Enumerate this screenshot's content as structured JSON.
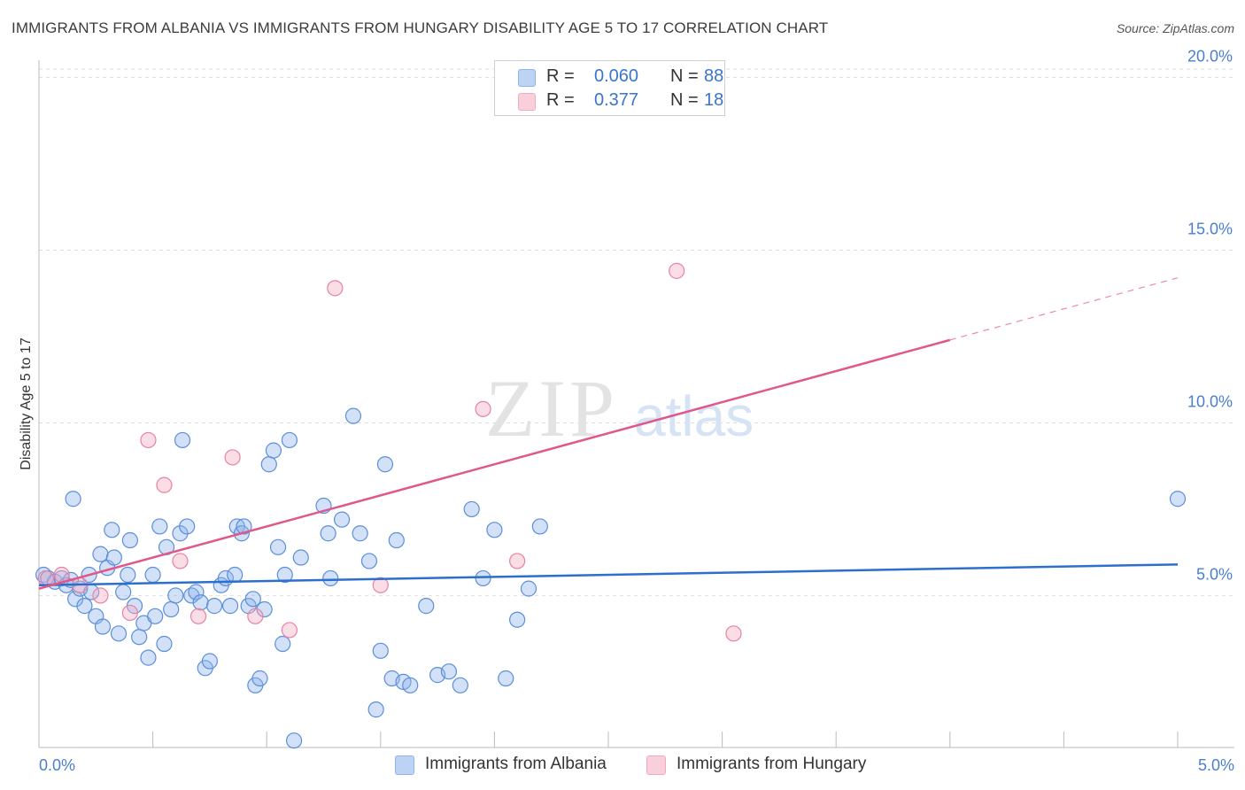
{
  "title": "IMMIGRANTS FROM ALBANIA VS IMMIGRANTS FROM HUNGARY DISABILITY AGE 5 TO 17 CORRELATION CHART",
  "source": "Source: ZipAtlas.com",
  "watermark": {
    "zip": "ZIP",
    "atlas": "atlas"
  },
  "legend": {
    "rows": [
      {
        "r_label": "R =",
        "r_value": "0.060",
        "n_label": "N =",
        "n_value": "88",
        "color": "#8fb4ec"
      },
      {
        "r_label": "R =",
        "r_value": "0.377",
        "n_label": "N =",
        "n_value": "18",
        "color": "#f4a9c0"
      }
    ]
  },
  "chart_data": {
    "type": "scatter",
    "title": "IMMIGRANTS FROM ALBANIA VS IMMIGRANTS FROM HUNGARY DISABILITY AGE 5 TO 17 CORRELATION CHART",
    "xlabel": "",
    "ylabel": "Disability Age 5 to 17",
    "xlim": [
      0,
      5
    ],
    "ylim": [
      0.6,
      20.5
    ],
    "x_tick_labels": [
      "0.0%",
      "5.0%"
    ],
    "y_ticks": [
      5,
      10,
      15,
      20
    ],
    "y_tick_labels": [
      "5.0%",
      "10.0%",
      "15.0%",
      "20.0%"
    ],
    "grid": true,
    "series": [
      {
        "name": "Immigrants from Albania",
        "color": "#8fb4ec",
        "stroke": "#5b8fd8",
        "trend": {
          "x": [
            0,
            5
          ],
          "y": [
            5.3,
            5.9
          ],
          "color": "#2d6fcc"
        },
        "points": [
          [
            0.02,
            5.6
          ],
          [
            0.04,
            5.5
          ],
          [
            0.07,
            5.4
          ],
          [
            0.1,
            5.5
          ],
          [
            0.12,
            5.3
          ],
          [
            0.14,
            5.45
          ],
          [
            0.15,
            7.8
          ],
          [
            0.16,
            4.9
          ],
          [
            0.18,
            5.2
          ],
          [
            0.2,
            4.7
          ],
          [
            0.22,
            5.6
          ],
          [
            0.23,
            5.1
          ],
          [
            0.25,
            4.4
          ],
          [
            0.27,
            6.2
          ],
          [
            0.28,
            4.1
          ],
          [
            0.3,
            5.8
          ],
          [
            0.32,
            6.9
          ],
          [
            0.33,
            6.1
          ],
          [
            0.35,
            3.9
          ],
          [
            0.37,
            5.1
          ],
          [
            0.39,
            5.6
          ],
          [
            0.4,
            6.6
          ],
          [
            0.42,
            4.7
          ],
          [
            0.44,
            3.8
          ],
          [
            0.46,
            4.2
          ],
          [
            0.48,
            3.2
          ],
          [
            0.5,
            5.6
          ],
          [
            0.51,
            4.4
          ],
          [
            0.53,
            7.0
          ],
          [
            0.55,
            3.6
          ],
          [
            0.56,
            6.4
          ],
          [
            0.58,
            4.6
          ],
          [
            0.6,
            5.0
          ],
          [
            0.62,
            6.8
          ],
          [
            0.63,
            9.5
          ],
          [
            0.65,
            7.0
          ],
          [
            0.67,
            5.0
          ],
          [
            0.69,
            5.1
          ],
          [
            0.71,
            4.8
          ],
          [
            0.73,
            2.9
          ],
          [
            0.75,
            3.1
          ],
          [
            0.77,
            4.7
          ],
          [
            0.8,
            5.3
          ],
          [
            0.82,
            5.5
          ],
          [
            0.84,
            4.7
          ],
          [
            0.86,
            5.6
          ],
          [
            0.87,
            7.0
          ],
          [
            0.89,
            6.8
          ],
          [
            0.9,
            7.0
          ],
          [
            0.92,
            4.7
          ],
          [
            0.94,
            4.9
          ],
          [
            0.95,
            2.4
          ],
          [
            0.97,
            2.6
          ],
          [
            0.99,
            4.6
          ],
          [
            1.01,
            8.8
          ],
          [
            1.03,
            9.2
          ],
          [
            1.05,
            6.4
          ],
          [
            1.07,
            3.6
          ],
          [
            1.08,
            5.6
          ],
          [
            1.1,
            9.5
          ],
          [
            1.12,
            0.8
          ],
          [
            1.15,
            6.1
          ],
          [
            1.25,
            7.6
          ],
          [
            1.27,
            6.8
          ],
          [
            1.28,
            5.5
          ],
          [
            1.33,
            7.2
          ],
          [
            1.38,
            10.2
          ],
          [
            1.41,
            6.8
          ],
          [
            1.45,
            6.0
          ],
          [
            1.48,
            1.7
          ],
          [
            1.5,
            3.4
          ],
          [
            1.52,
            8.8
          ],
          [
            1.55,
            2.6
          ],
          [
            1.57,
            6.6
          ],
          [
            1.6,
            2.5
          ],
          [
            1.63,
            2.4
          ],
          [
            1.7,
            4.7
          ],
          [
            1.75,
            2.7
          ],
          [
            1.8,
            2.8
          ],
          [
            1.85,
            2.4
          ],
          [
            1.9,
            7.5
          ],
          [
            1.95,
            5.5
          ],
          [
            2.0,
            6.9
          ],
          [
            2.05,
            2.6
          ],
          [
            2.1,
            4.3
          ],
          [
            2.15,
            5.2
          ],
          [
            2.2,
            7.0
          ],
          [
            5.0,
            7.8
          ]
        ]
      },
      {
        "name": "Immigrants from Hungary",
        "color": "#f4a9c0",
        "stroke": "#e882a3",
        "trend": {
          "x": [
            0,
            4.0
          ],
          "y": [
            5.2,
            12.4
          ],
          "dashed_to": {
            "x": 5.0,
            "y": 14.2
          },
          "color": "#e0588a"
        },
        "points": [
          [
            0.03,
            5.5
          ],
          [
            0.1,
            5.6
          ],
          [
            0.18,
            5.3
          ],
          [
            0.27,
            5.0
          ],
          [
            0.4,
            4.5
          ],
          [
            0.48,
            9.5
          ],
          [
            0.55,
            8.2
          ],
          [
            0.62,
            6.0
          ],
          [
            0.7,
            4.4
          ],
          [
            0.85,
            9.0
          ],
          [
            0.95,
            4.4
          ],
          [
            1.1,
            4.0
          ],
          [
            1.3,
            13.9
          ],
          [
            1.5,
            5.3
          ],
          [
            1.95,
            10.4
          ],
          [
            2.1,
            6.0
          ],
          [
            2.8,
            14.4
          ],
          [
            3.05,
            3.9
          ]
        ]
      }
    ],
    "legend_position": "top-center"
  },
  "bottom_legend": [
    {
      "label": "Immigrants from Albania",
      "color": "#8fb4ec"
    },
    {
      "label": "Immigrants from Hungary",
      "color": "#f4a9c0"
    }
  ]
}
